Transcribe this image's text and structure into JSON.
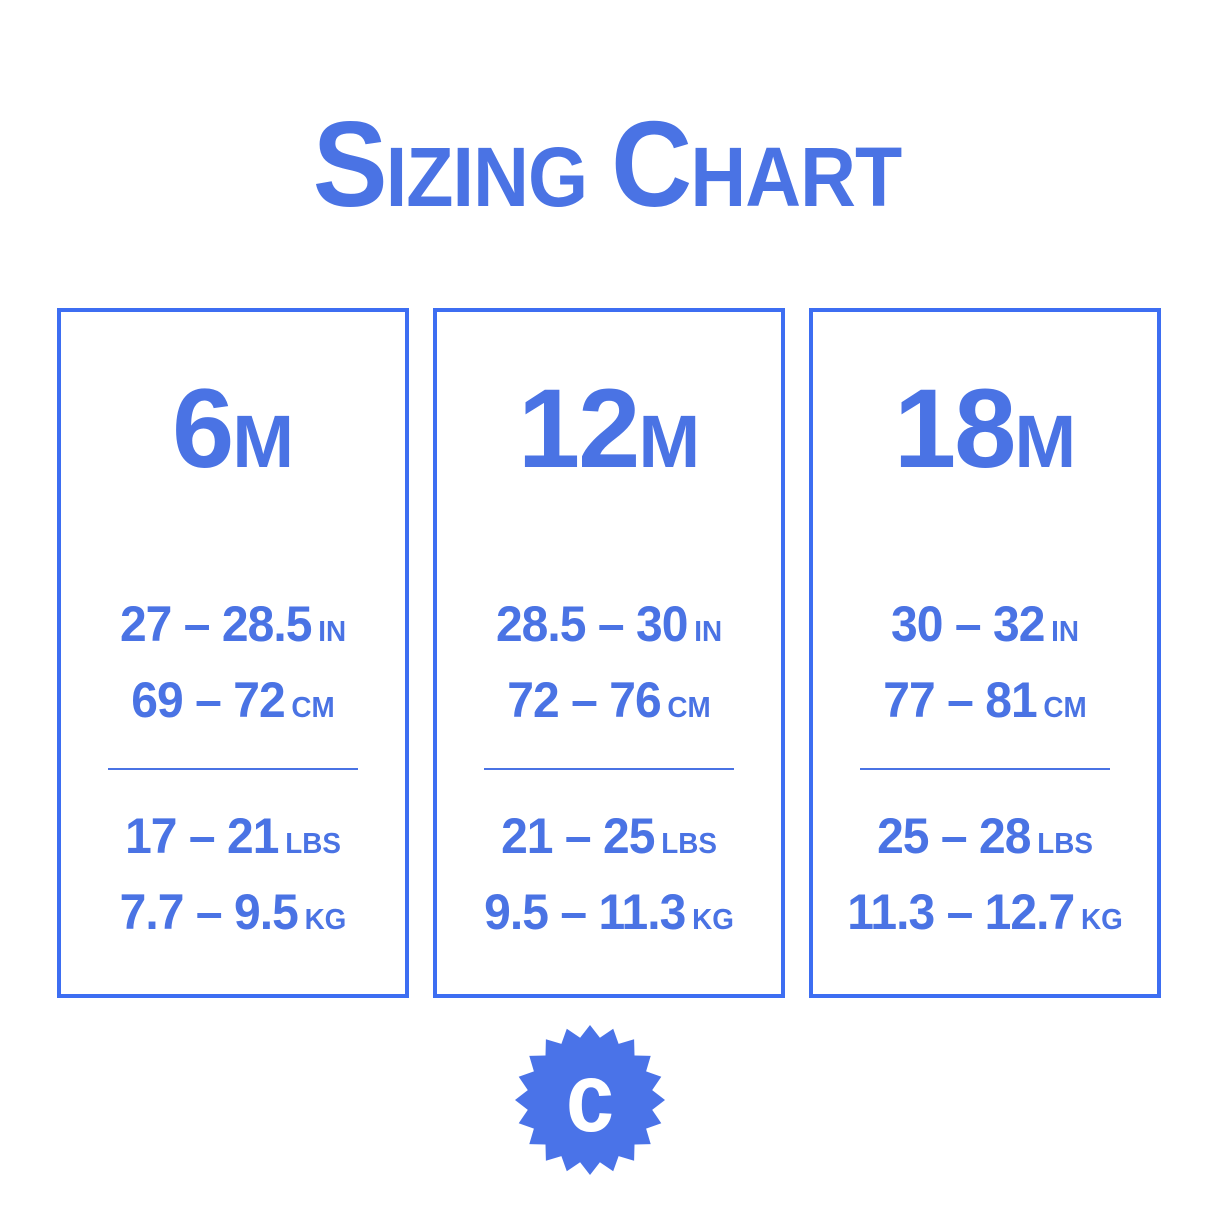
{
  "title": {
    "full": "Sizing Chart",
    "words": [
      {
        "initial": "S",
        "rest": "izing"
      },
      {
        "initial": "C",
        "rest": "hart"
      }
    ]
  },
  "colors": {
    "accent": "#4a73e4",
    "border": "#3d6ef2",
    "badge_fill": "#4a73e8",
    "background": "#ffffff"
  },
  "columns": [
    {
      "size": {
        "number": "6",
        "suffix": "M"
      },
      "height": [
        {
          "range": "27 – 28.5",
          "unit": "IN"
        },
        {
          "range": "69 – 72",
          "unit": "CM"
        }
      ],
      "weight": [
        {
          "range": "17 – 21",
          "unit": "LBS"
        },
        {
          "range": "7.7 – 9.5",
          "unit": "KG"
        }
      ]
    },
    {
      "size": {
        "number": "12",
        "suffix": "M"
      },
      "height": [
        {
          "range": "28.5 – 30",
          "unit": "IN"
        },
        {
          "range": "72 – 76",
          "unit": "CM"
        }
      ],
      "weight": [
        {
          "range": "21 – 25",
          "unit": "LBS"
        },
        {
          "range": "9.5 – 11.3",
          "unit": "KG"
        }
      ]
    },
    {
      "size": {
        "number": "18",
        "suffix": "M"
      },
      "height": [
        {
          "range": "30 – 32",
          "unit": "IN"
        },
        {
          "range": "77 – 81",
          "unit": "CM"
        }
      ],
      "weight": [
        {
          "range": "25 – 28",
          "unit": "LBS"
        },
        {
          "range": "11.3 – 12.7",
          "unit": "KG"
        }
      ]
    }
  ],
  "badge": {
    "letter": "c"
  }
}
